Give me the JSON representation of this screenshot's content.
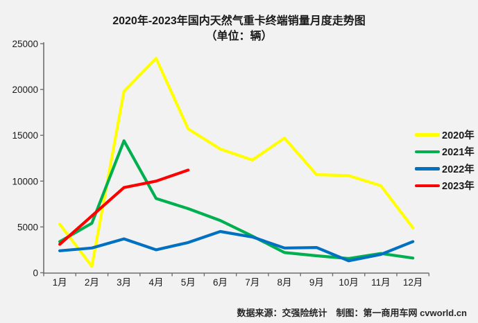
{
  "chart": {
    "title": "2020年-2023年国内天然气重卡终端销量月度走势图",
    "subtitle": "（单位：辆）",
    "footer": "数据来源：交强险统计　制图：第一商用车网 cvworld.cn",
    "background_color": "#f2f2f2",
    "axis_color": "#6e6e6e",
    "text_color": "#1a1a1a"
  },
  "chart_data": {
    "type": "line",
    "title": "2020年-2023年国内天然气重卡终端销量月度走势图",
    "subtitle": "（单位：辆）",
    "categories": [
      "1月",
      "2月",
      "3月",
      "4月",
      "5月",
      "6月",
      "7月",
      "8月",
      "9月",
      "10月",
      "11月",
      "12月"
    ],
    "series": [
      {
        "name": "2020年",
        "color": "#FFFF00",
        "values": [
          5300,
          700,
          19800,
          23400,
          15700,
          13500,
          12300,
          14700,
          10700,
          10600,
          9500,
          4900
        ]
      },
      {
        "name": "2021年",
        "color": "#00B050",
        "values": [
          3400,
          5400,
          14400,
          8100,
          7000,
          5700,
          4000,
          2200,
          1850,
          1550,
          2100,
          1600
        ]
      },
      {
        "name": "2022年",
        "color": "#0070C0",
        "values": [
          2400,
          2700,
          3700,
          2500,
          3300,
          4500,
          3900,
          2700,
          2750,
          1300,
          2000,
          3400
        ]
      },
      {
        "name": "2023年",
        "color": "#FF0000",
        "values": [
          3100,
          6200,
          9300,
          10000,
          11200
        ]
      }
    ],
    "ylim": [
      0,
      25000
    ],
    "yticks": [
      0,
      5000,
      10000,
      15000,
      20000,
      25000
    ],
    "grid": false,
    "legend_position": "right"
  }
}
